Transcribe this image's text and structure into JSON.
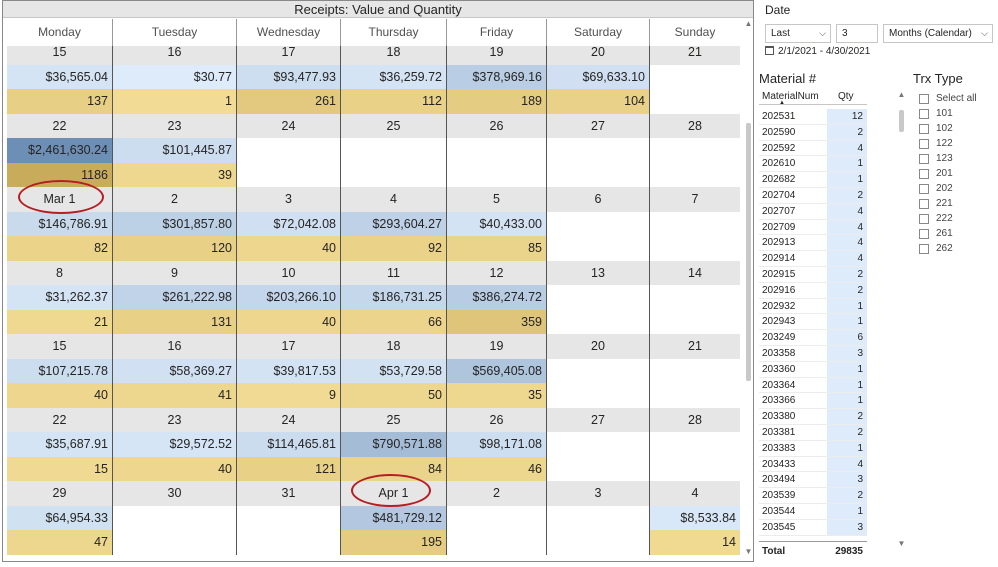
{
  "calendar": {
    "title": "Receipts: Value and Quantity",
    "days": [
      "Monday",
      "Tuesday",
      "Wednesday",
      "Thursday",
      "Friday",
      "Saturday",
      "Sunday"
    ],
    "weeks": [
      {
        "dates": [
          "15",
          "16",
          "17",
          "18",
          "19",
          "20",
          "21"
        ],
        "values": [
          "$36,565.04",
          "$30.77",
          "$93,477.93",
          "$36,259.72",
          "$378,969.16",
          "$69,633.10",
          ""
        ],
        "qty": [
          "137",
          "1",
          "261",
          "112",
          "189",
          "104",
          ""
        ]
      },
      {
        "dates": [
          "22",
          "23",
          "24",
          "25",
          "26",
          "27",
          "28"
        ],
        "values": [
          "$2,461,630.24",
          "$101,445.87",
          "",
          "",
          "",
          "",
          ""
        ],
        "qty": [
          "1186",
          "39",
          "",
          "",
          "",
          "",
          ""
        ]
      },
      {
        "dates": [
          "Mar 1",
          "2",
          "3",
          "4",
          "5",
          "6",
          "7"
        ],
        "values": [
          "$146,786.91",
          "$301,857.80",
          "$72,042.08",
          "$293,604.27",
          "$40,433.00",
          "",
          ""
        ],
        "qty": [
          "82",
          "120",
          "40",
          "92",
          "85",
          "",
          ""
        ]
      },
      {
        "dates": [
          "8",
          "9",
          "10",
          "11",
          "12",
          "13",
          "14"
        ],
        "values": [
          "$31,262.37",
          "$261,222.98",
          "$203,266.10",
          "$186,731.25",
          "$386,274.72",
          "",
          ""
        ],
        "qty": [
          "21",
          "131",
          "40",
          "66",
          "359",
          "",
          ""
        ]
      },
      {
        "dates": [
          "15",
          "16",
          "17",
          "18",
          "19",
          "20",
          "21"
        ],
        "values": [
          "$107,215.78",
          "$58,369.27",
          "$39,817.53",
          "$53,729.58",
          "$569,405.08",
          "",
          ""
        ],
        "qty": [
          "40",
          "41",
          "9",
          "50",
          "35",
          "",
          ""
        ]
      },
      {
        "dates": [
          "22",
          "23",
          "24",
          "25",
          "26",
          "27",
          "28"
        ],
        "values": [
          "$35,687.91",
          "$29,572.52",
          "$114,465.81",
          "$790,571.88",
          "$98,171.08",
          "",
          ""
        ],
        "qty": [
          "15",
          "40",
          "121",
          "84",
          "46",
          "",
          ""
        ]
      },
      {
        "dates": [
          "29",
          "30",
          "31",
          "Apr 1",
          "2",
          "3",
          "4"
        ],
        "values": [
          "$64,954.33",
          "",
          "",
          "$481,729.12",
          "",
          "",
          "$8,533.84"
        ],
        "qty": [
          "47",
          "",
          "",
          "195",
          "",
          "",
          "14"
        ]
      }
    ],
    "colors": {
      "header_bg": "#e6e6e6",
      "value_low": "#ddebfa",
      "value_high": "#6e8fb5",
      "qty_low": "#f3dd96",
      "qty_high": "#c9ab5c",
      "annotation_oval": "#b61e24"
    }
  },
  "date_slicer": {
    "title": "Date",
    "mode": "Last",
    "count": "3",
    "unit": "Months (Calendar)",
    "range_text": "2/1/2021 - 4/30/2021"
  },
  "material_table": {
    "title": "Material #",
    "col1": "MaterialNum",
    "col2": "Qty",
    "rows": [
      [
        "202531",
        "12"
      ],
      [
        "202590",
        "2"
      ],
      [
        "202592",
        "4"
      ],
      [
        "202610",
        "1"
      ],
      [
        "202682",
        "1"
      ],
      [
        "202704",
        "2"
      ],
      [
        "202707",
        "4"
      ],
      [
        "202709",
        "4"
      ],
      [
        "202913",
        "4"
      ],
      [
        "202914",
        "4"
      ],
      [
        "202915",
        "2"
      ],
      [
        "202916",
        "2"
      ],
      [
        "202932",
        "1"
      ],
      [
        "202943",
        "1"
      ],
      [
        "203249",
        "6"
      ],
      [
        "203358",
        "3"
      ],
      [
        "203360",
        "1"
      ],
      [
        "203364",
        "1"
      ],
      [
        "203366",
        "1"
      ],
      [
        "203380",
        "2"
      ],
      [
        "203381",
        "2"
      ],
      [
        "203383",
        "1"
      ],
      [
        "203433",
        "4"
      ],
      [
        "203494",
        "3"
      ],
      [
        "203539",
        "2"
      ],
      [
        "203544",
        "1"
      ],
      [
        "203545",
        "3"
      ]
    ],
    "total_label": "Total",
    "total_value": "29835"
  },
  "trx_slicer": {
    "title": "Trx Type",
    "items": [
      "Select all",
      "101",
      "102",
      "122",
      "123",
      "201",
      "202",
      "221",
      "222",
      "261",
      "262"
    ]
  }
}
